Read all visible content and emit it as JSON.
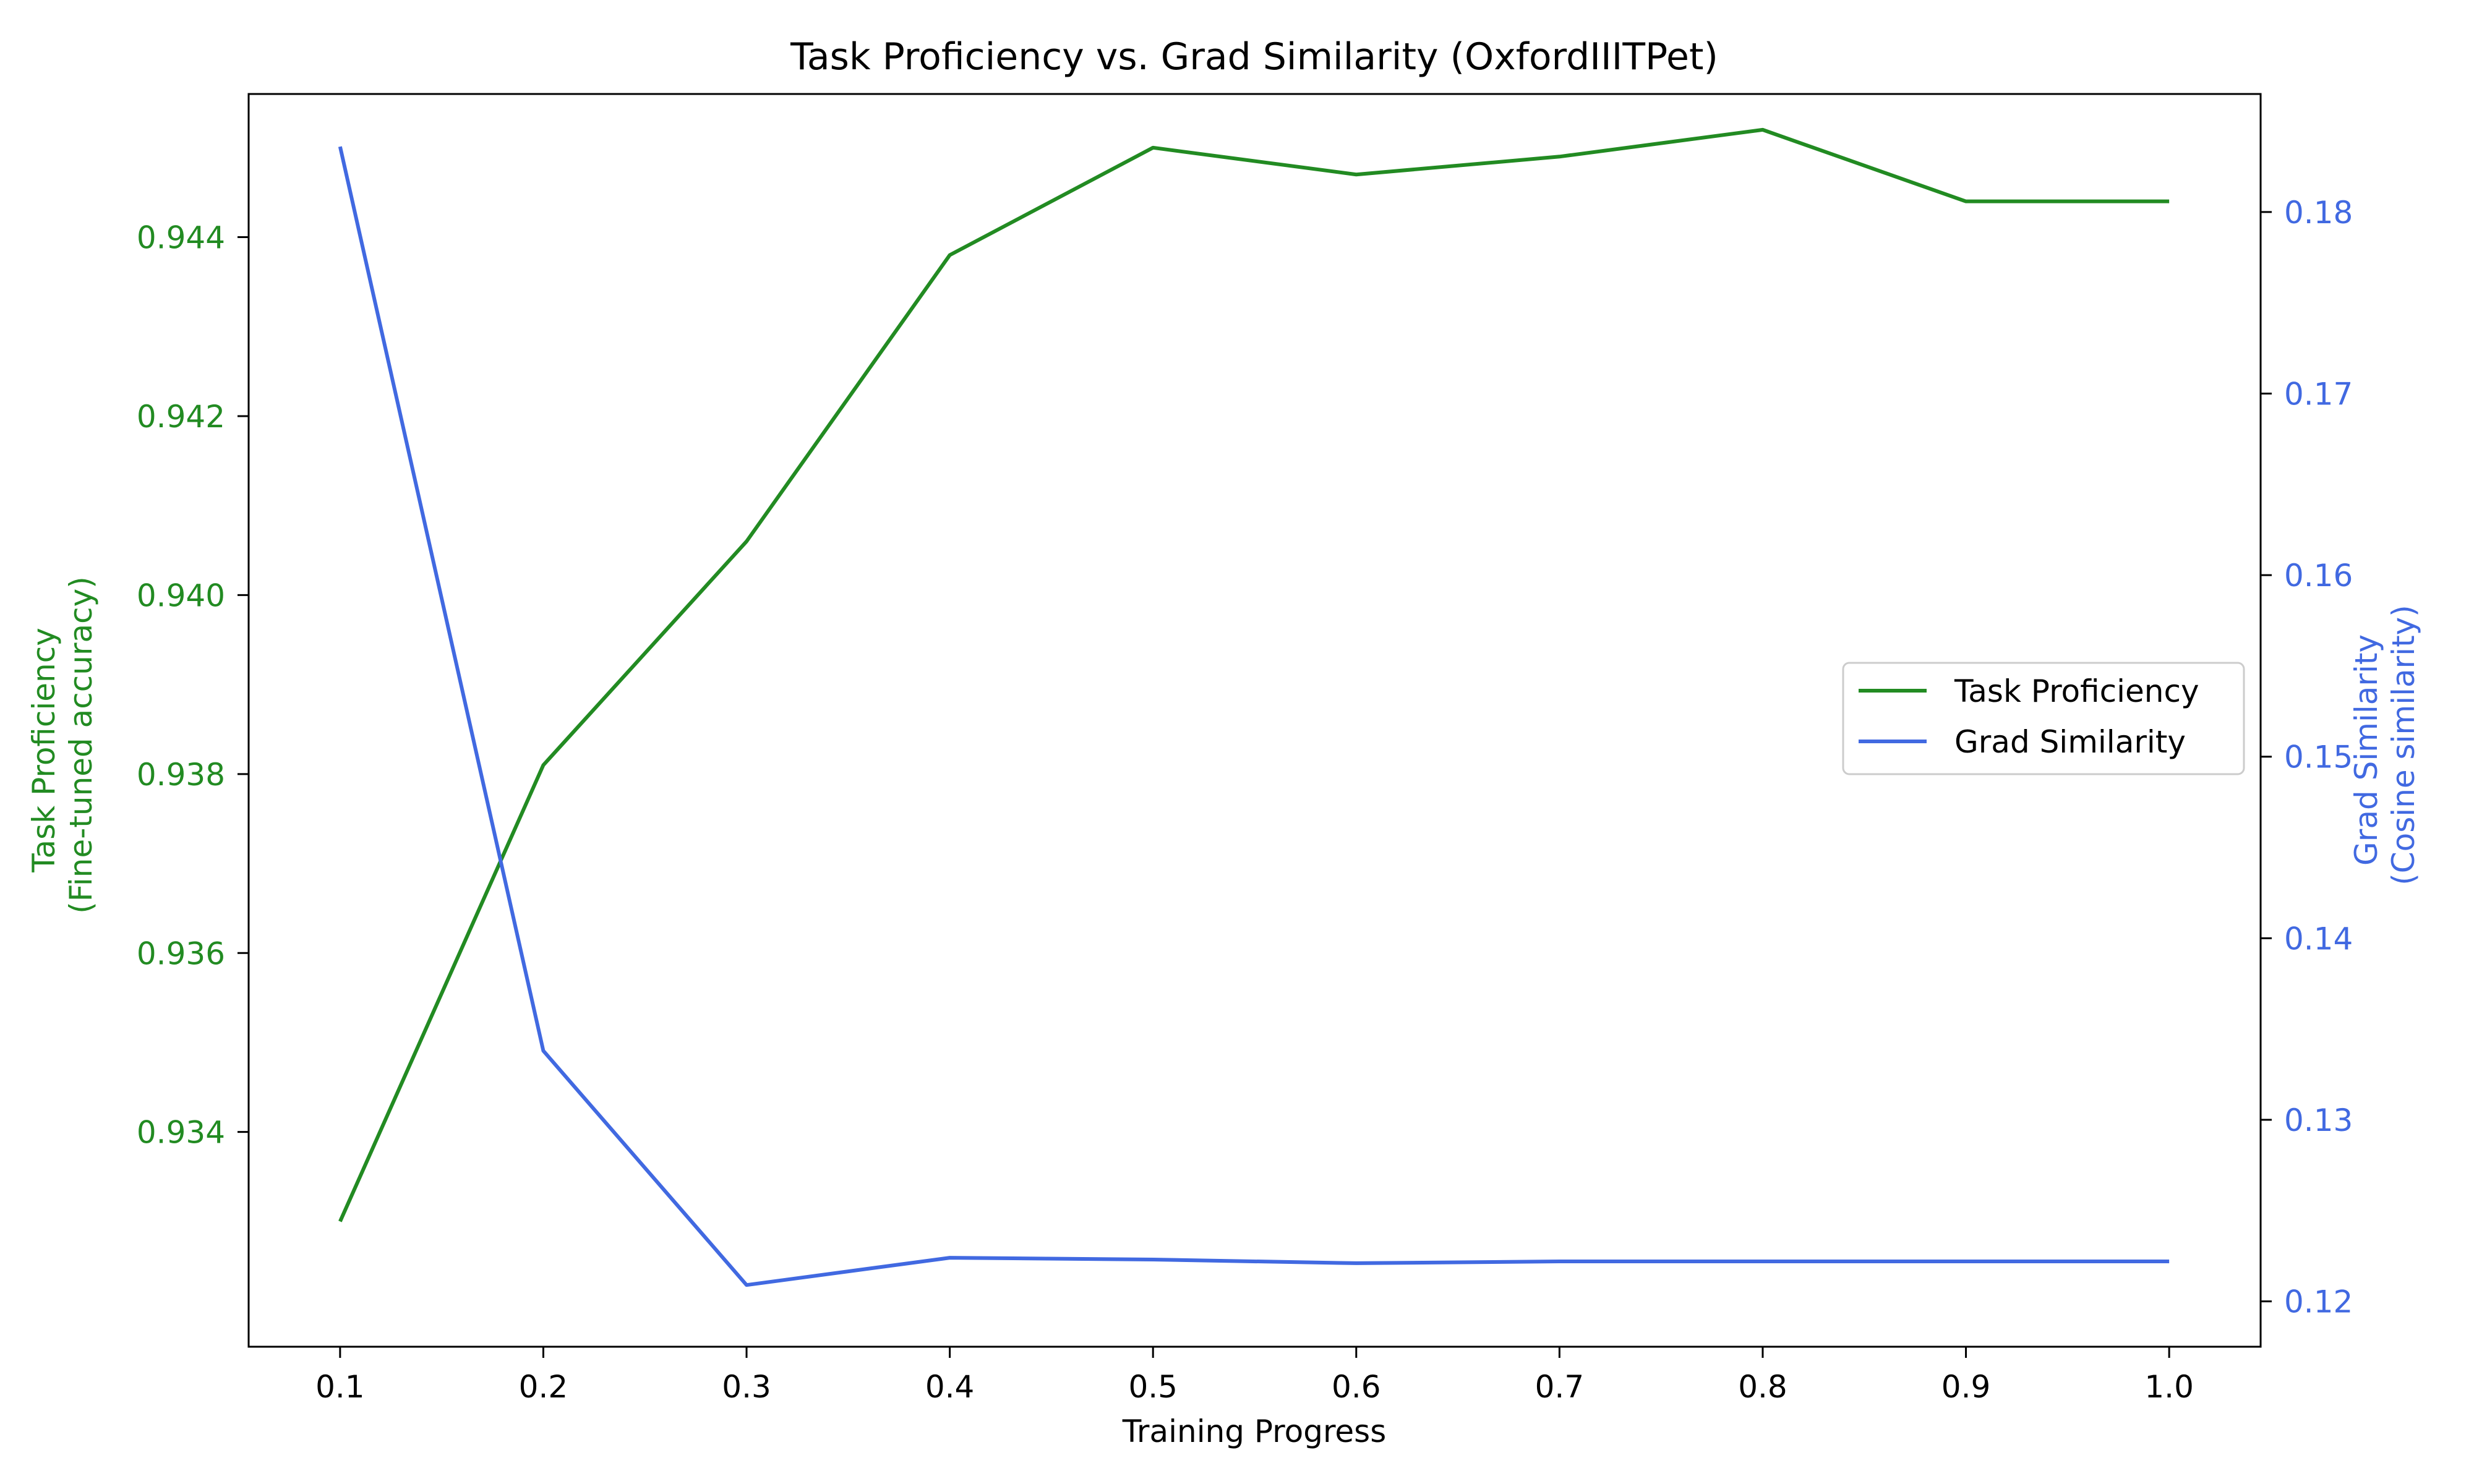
{
  "chart_data": {
    "type": "line",
    "title": "Task Proficiency vs. Grad Similarity (OxfordIIITPet)",
    "xlabel": "Training Progress",
    "ylabel_left": [
      "Task Proficiency",
      "(Fine-tuned accuracy)"
    ],
    "ylabel_right": [
      "Grad Similarity",
      "(Cosine similarity)"
    ],
    "x": [
      0.1,
      0.2,
      0.3,
      0.4,
      0.5,
      0.6,
      0.7,
      0.8,
      0.9,
      1.0
    ],
    "xlim": [
      0.055,
      1.045
    ],
    "ylim_left": [
      0.9316,
      0.9456
    ],
    "ylim_right": [
      0.1175,
      0.1865
    ],
    "x_ticks": [
      "0.1",
      "0.2",
      "0.3",
      "0.4",
      "0.5",
      "0.6",
      "0.7",
      "0.8",
      "0.9",
      "1.0"
    ],
    "y_left_ticks": [
      "0.934",
      "0.936",
      "0.938",
      "0.940",
      "0.942",
      "0.944"
    ],
    "y_right_ticks": [
      "0.12",
      "0.13",
      "0.14",
      "0.15",
      "0.16",
      "0.17",
      "0.18"
    ],
    "grid": false,
    "legend_position": "center-right",
    "series": [
      {
        "name": "Task Proficiency",
        "axis": "left",
        "color": "#228B22",
        "values": [
          0.933,
          0.9381,
          0.9406,
          0.9438,
          0.945,
          0.9447,
          0.9449,
          0.9452,
          0.9444,
          0.9444
        ]
      },
      {
        "name": "Grad Similarity",
        "axis": "right",
        "color": "#4169E1",
        "values": [
          0.1836,
          0.1338,
          0.1209,
          0.1224,
          0.1223,
          0.1221,
          0.1222,
          0.1222,
          0.1222,
          0.1222
        ]
      }
    ],
    "axis_colors": {
      "left": "#228B22",
      "right": "#4169E1",
      "x": "#000000"
    }
  }
}
